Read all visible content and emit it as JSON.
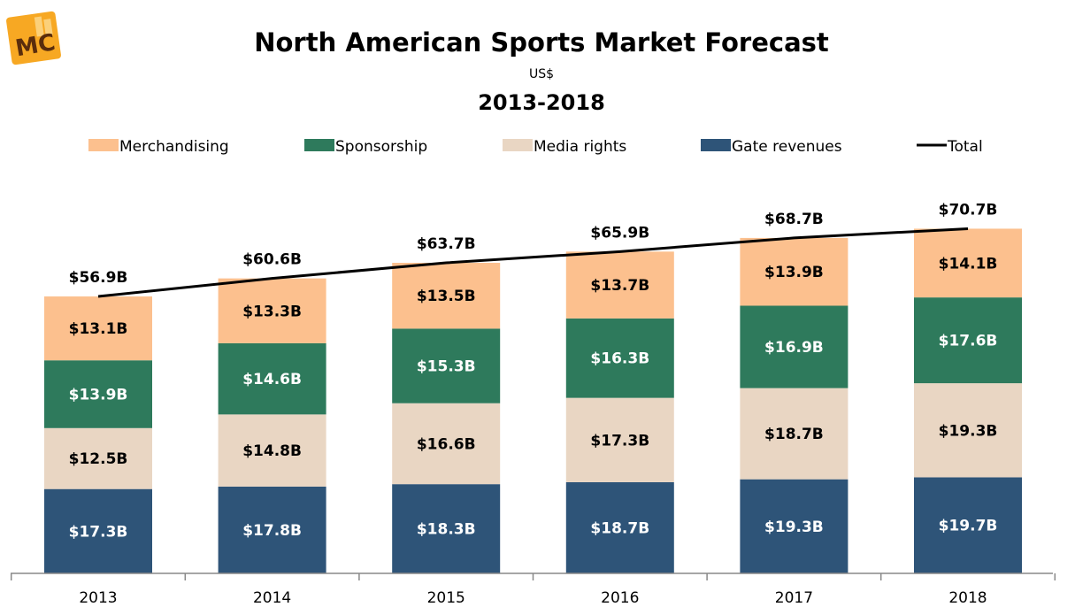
{
  "logo": {
    "text": "MC"
  },
  "chart_data": {
    "type": "bar",
    "stacked": true,
    "title": "North American Sports Market Forecast",
    "subtitle": "US$",
    "period": "2013-2018",
    "categories": [
      "2013",
      "2014",
      "2015",
      "2016",
      "2017",
      "2018"
    ],
    "series": [
      {
        "name": "Gate revenues",
        "color": "#2e5478",
        "values": [
          17.3,
          17.8,
          18.3,
          18.7,
          19.3,
          19.7
        ],
        "labels": [
          "$17.3B",
          "$17.8B",
          "$18.3B",
          "$18.7B",
          "$19.3B",
          "$19.7B"
        ]
      },
      {
        "name": "Media rights",
        "color": "#e9d6c3",
        "values": [
          12.5,
          14.8,
          16.6,
          17.3,
          18.7,
          19.3
        ],
        "labels": [
          "$12.5B",
          "$14.8B",
          "$16.6B",
          "$17.3B",
          "$18.7B",
          "$19.3B"
        ]
      },
      {
        "name": "Sponsorship",
        "color": "#2e7a5c",
        "values": [
          13.9,
          14.6,
          15.3,
          16.3,
          16.9,
          17.6
        ],
        "labels": [
          "$13.9B",
          "$14.6B",
          "$15.3B",
          "$16.3B",
          "$16.9B",
          "$17.6B"
        ]
      },
      {
        "name": "Merchandising",
        "color": "#fcc08e",
        "values": [
          13.1,
          13.3,
          13.5,
          13.7,
          13.9,
          14.1
        ],
        "labels": [
          "$13.1B",
          "$13.3B",
          "$13.5B",
          "$13.7B",
          "$13.9B",
          "$14.1B"
        ]
      }
    ],
    "total": {
      "name": "Total",
      "color": "#000000",
      "values": [
        56.9,
        60.6,
        63.7,
        65.9,
        68.7,
        70.7
      ],
      "labels": [
        "$56.9B",
        "$60.6B",
        "$63.7B",
        "$65.9B",
        "$68.7B",
        "$70.7B"
      ]
    },
    "legend_order": [
      "Merchandising",
      "Sponsorship",
      "Media rights",
      "Gate revenues",
      "Total"
    ],
    "legend_position": "top",
    "ylim": [
      0,
      80
    ],
    "grid": false,
    "xlabel": "",
    "ylabel": ""
  }
}
